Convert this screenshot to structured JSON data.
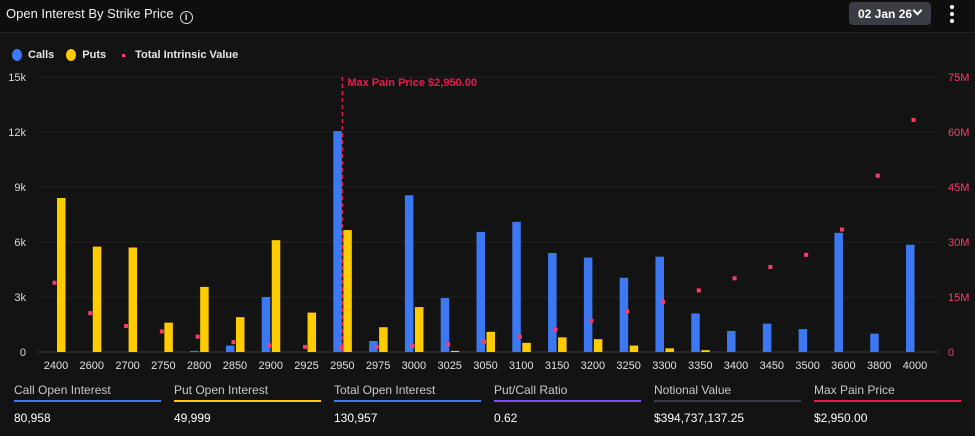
{
  "header": {
    "title": "Open Interest By Strike Price",
    "info_icon": "info-icon",
    "date": "02 Jan 26",
    "menu_icon": "kebab-icon"
  },
  "legend": {
    "calls": "Calls",
    "puts": "Puts",
    "intrinsic": "Total Intrinsic Value"
  },
  "colors": {
    "calls": "#3b78f2",
    "puts": "#ffcc00",
    "intrinsic": "#ff3a6a",
    "maxpain": "#e8194b"
  },
  "chart_data": {
    "type": "bar",
    "categories": [
      "2400",
      "2600",
      "2700",
      "2750",
      "2800",
      "2850",
      "2900",
      "2925",
      "2950",
      "2975",
      "3000",
      "3025",
      "3050",
      "3100",
      "3150",
      "3200",
      "3250",
      "3300",
      "3350",
      "3400",
      "3450",
      "3500",
      "3600",
      "3800",
      "4000"
    ],
    "series": [
      {
        "name": "Calls",
        "axis": "left",
        "values": [
          0,
          0,
          0,
          0,
          60,
          350,
          3000,
          0,
          12050,
          600,
          8550,
          2950,
          6550,
          7100,
          5400,
          5150,
          4050,
          5200,
          2100,
          1150,
          1550,
          1250,
          6500,
          1000,
          5850
        ]
      },
      {
        "name": "Puts",
        "axis": "left",
        "values": [
          8400,
          5750,
          5700,
          1600,
          3550,
          1900,
          6100,
          2150,
          6650,
          1350,
          2450,
          60,
          1100,
          500,
          800,
          700,
          350,
          200,
          100,
          0,
          0,
          0,
          0,
          0,
          0
        ]
      },
      {
        "name": "Total Intrinsic Value",
        "axis": "right",
        "type": "scatter",
        "values": [
          18900000,
          10600000,
          7100000,
          5600000,
          4200000,
          2700000,
          1800000,
          1400000,
          1100000,
          1400000,
          1600000,
          2100000,
          2800000,
          4200000,
          6100000,
          8500000,
          11100000,
          13700000,
          16800000,
          20100000,
          23200000,
          26500000,
          33400000,
          48100000,
          63300000
        ]
      }
    ],
    "y_left": {
      "ticks": [
        "0",
        "3k",
        "6k",
        "9k",
        "12k",
        "15k"
      ],
      "range": [
        0,
        15000
      ]
    },
    "y_right": {
      "ticks": [
        "0",
        "15M",
        "30M",
        "45M",
        "60M",
        "75M"
      ],
      "range": [
        0,
        75000000
      ]
    },
    "annotation": {
      "label": "Max Pain Price $2,950.00",
      "category": "2950"
    },
    "grid": true,
    "legend_position": "top-left"
  },
  "stats": [
    {
      "label": "Call Open Interest",
      "value": "80,958",
      "color": "#3b78f2"
    },
    {
      "label": "Put Open Interest",
      "value": "49,999",
      "color": "#ffcc00"
    },
    {
      "label": "Total Open Interest",
      "value": "130,957",
      "color": "#3b78f2"
    },
    {
      "label": "Put/Call Ratio",
      "value": "0.62",
      "color": "#7b4df2"
    },
    {
      "label": "Notional Value",
      "value": "$394,737,137.25",
      "color": "#3a3d44"
    },
    {
      "label": "Max Pain Price",
      "value": "$2,950.00",
      "color": "#e8194b"
    }
  ]
}
